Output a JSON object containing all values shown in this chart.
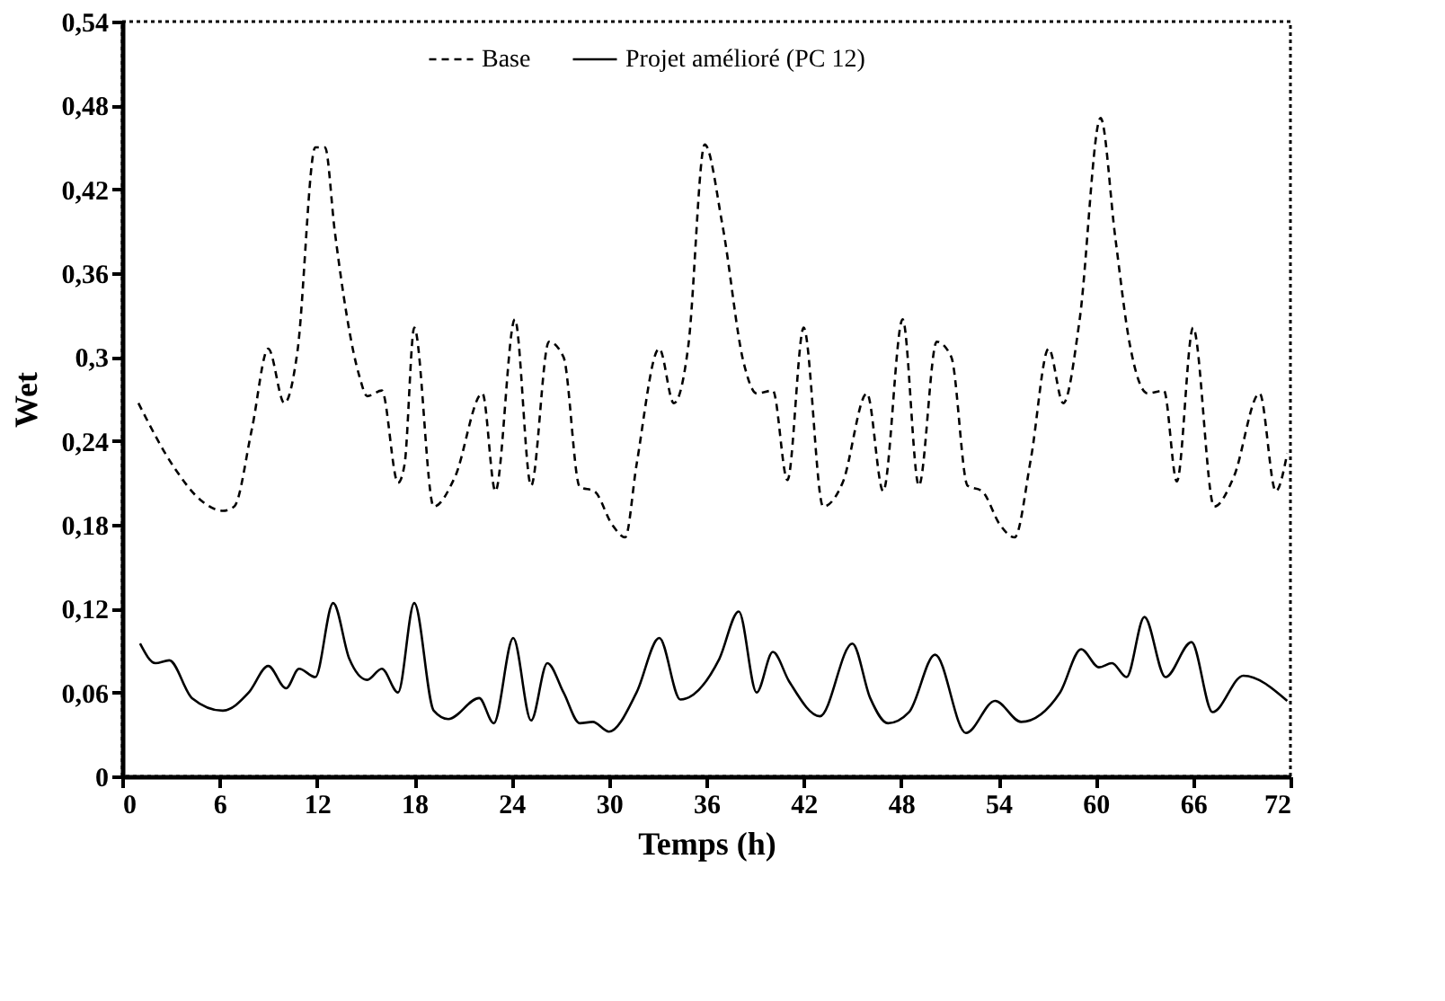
{
  "chart_data": {
    "type": "line",
    "xlabel": "Temps (h)",
    "ylabel": "Wet",
    "xlim": [
      0,
      72
    ],
    "xticks": [
      0,
      6,
      12,
      18,
      24,
      30,
      36,
      42,
      48,
      54,
      60,
      66,
      72
    ],
    "ylim": [
      0,
      0.54
    ],
    "yticks": [
      0,
      {
        "value": 0.06,
        "label": "0,06"
      },
      {
        "value": 0.12,
        "label": "0,12"
      },
      {
        "value": 0.18,
        "label": "0,18"
      },
      {
        "value": 0.24,
        "label": "0,24"
      },
      {
        "value": 0.3,
        "label": "0,3"
      },
      {
        "value": 0.36,
        "label": "0,36"
      },
      {
        "value": 0.42,
        "label": "0,42"
      },
      {
        "value": 0.48,
        "label": "0,48"
      },
      {
        "value": 0.54,
        "label": "0,54"
      }
    ],
    "grid": false,
    "legend": "top",
    "series": [
      {
        "name": "Base",
        "color": "#000000",
        "line_style": "dashed",
        "x": [
          1.0,
          3.2,
          4.9,
          6.2,
          6.9,
          8.0,
          9.0,
          10.0,
          10.8,
          11.9,
          12.5,
          13.1,
          14.6,
          15.1,
          16.0,
          17.0,
          17.4,
          18.0,
          19.2,
          20.5,
          22.2,
          23.0,
          24.2,
          25.2,
          26.3,
          27.2,
          28.2,
          29.1,
          30.2,
          31.0,
          31.7,
          33.1,
          34.0,
          34.9,
          35.9,
          37.0,
          38.3,
          39.1,
          40.1,
          41.0,
          42.0,
          43.2,
          44.4,
          45.9,
          46.9,
          48.1,
          49.1,
          50.2,
          51.1,
          52.1,
          53.0,
          54.1,
          55.0,
          56.0,
          57.1,
          58.0,
          59.0,
          60.3,
          61.2,
          62.1,
          63.2,
          64.2,
          65.0,
          66.0,
          67.3,
          68.5,
          70.1,
          71.1,
          71.8
        ],
        "values": [
          0.267,
          0.221,
          0.197,
          0.19,
          0.193,
          0.249,
          0.306,
          0.267,
          0.304,
          0.45,
          0.45,
          0.39,
          0.287,
          0.272,
          0.276,
          0.21,
          0.223,
          0.321,
          0.193,
          0.214,
          0.274,
          0.204,
          0.327,
          0.208,
          0.311,
          0.3,
          0.207,
          0.204,
          0.18,
          0.171,
          0.223,
          0.306,
          0.267,
          0.309,
          0.452,
          0.394,
          0.296,
          0.274,
          0.276,
          0.212,
          0.321,
          0.193,
          0.21,
          0.274,
          0.204,
          0.327,
          0.208,
          0.311,
          0.3,
          0.208,
          0.204,
          0.18,
          0.171,
          0.227,
          0.306,
          0.267,
          0.326,
          0.471,
          0.386,
          0.309,
          0.274,
          0.276,
          0.211,
          0.321,
          0.193,
          0.214,
          0.274,
          0.204,
          0.231
        ]
      },
      {
        "name": "Projet amélioré (PC 12)",
        "color": "#000000",
        "line_style": "solid",
        "x": [
          1.1,
          2.05,
          2.9,
          4.3,
          6.2,
          7.8,
          9.0,
          10.1,
          10.9,
          11.9,
          13.0,
          14.0,
          15.1,
          16.0,
          17.0,
          18.0,
          19.2,
          20.1,
          22.0,
          22.9,
          24.1,
          25.2,
          26.2,
          27.2,
          28.2,
          29.0,
          30.0,
          31.7,
          33.1,
          34.4,
          36.8,
          38.0,
          39.1,
          40.1,
          41.1,
          43.0,
          45.0,
          46.1,
          47.2,
          48.5,
          50.1,
          52.0,
          53.8,
          55.4,
          57.8,
          59.1,
          60.2,
          61.0,
          61.9,
          63.0,
          64.3,
          65.9,
          67.2,
          69.1,
          71.8
        ],
        "values": [
          0.095,
          0.081,
          0.083,
          0.056,
          0.047,
          0.06,
          0.079,
          0.063,
          0.077,
          0.071,
          0.124,
          0.084,
          0.069,
          0.077,
          0.06,
          0.124,
          0.047,
          0.041,
          0.056,
          0.038,
          0.099,
          0.04,
          0.081,
          0.06,
          0.038,
          0.039,
          0.032,
          0.06,
          0.099,
          0.055,
          0.084,
          0.118,
          0.06,
          0.089,
          0.068,
          0.043,
          0.095,
          0.056,
          0.038,
          0.046,
          0.087,
          0.031,
          0.054,
          0.039,
          0.06,
          0.091,
          0.078,
          0.081,
          0.071,
          0.114,
          0.071,
          0.096,
          0.046,
          0.072,
          0.054
        ]
      }
    ]
  }
}
